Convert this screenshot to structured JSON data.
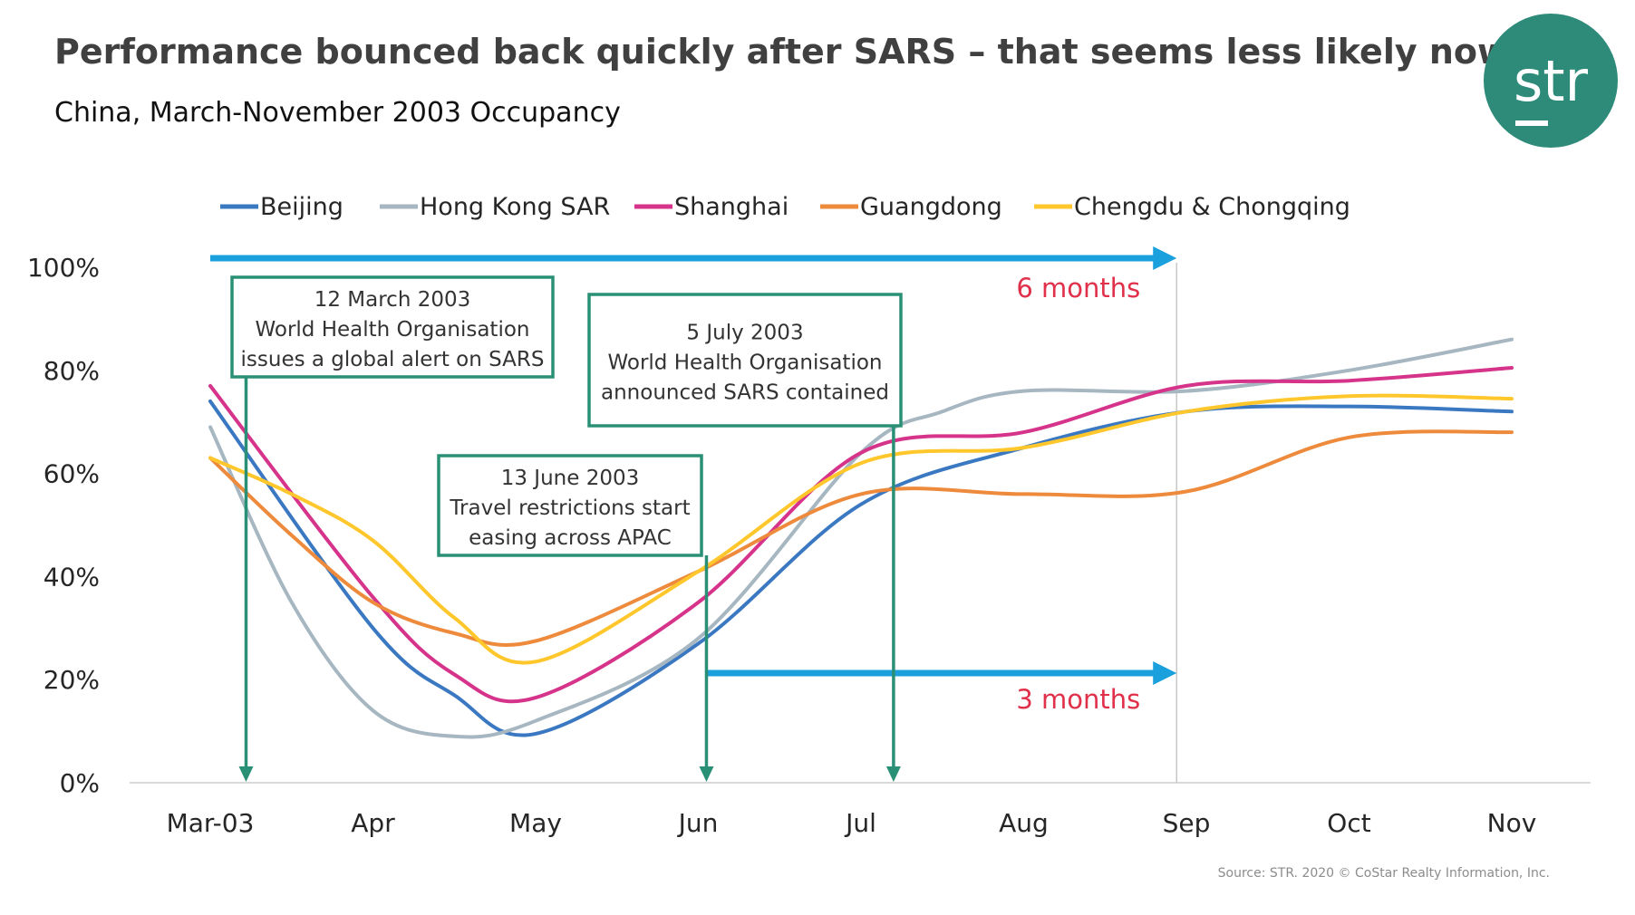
{
  "title": "Performance bounced back quickly after SARS – that seems less likely now",
  "subtitle": "China, March-November 2003 Occupancy",
  "logo": {
    "text": "str",
    "color": "#2e8b7a"
  },
  "source": "Source: STR. 2020 © CoStar Realty Information, Inc.",
  "chart_data": {
    "type": "line",
    "categories": [
      "Mar-03",
      "Apr",
      "May",
      "Jun",
      "Jul",
      "Aug",
      "Sep",
      "Oct",
      "Nov"
    ],
    "ylim": [
      0,
      100
    ],
    "yticks": [
      "0%",
      "20%",
      "40%",
      "60%",
      "80%",
      "100%"
    ],
    "grid": false,
    "legend": "top",
    "series": [
      {
        "name": "Beijing",
        "color": "#3a78c2",
        "points": [
          [
            0,
            74
          ],
          [
            1,
            30
          ],
          [
            1.5,
            17
          ],
          [
            2,
            9.5
          ],
          [
            3,
            27
          ],
          [
            4,
            54
          ],
          [
            5,
            65
          ],
          [
            6,
            72
          ],
          [
            7,
            73
          ],
          [
            8,
            72
          ]
        ]
      },
      {
        "name": "Hong Kong SAR",
        "color": "#a7b7c1",
        "points": [
          [
            0,
            69
          ],
          [
            0.5,
            35
          ],
          [
            1,
            14
          ],
          [
            1.5,
            9
          ],
          [
            2,
            12
          ],
          [
            3,
            28
          ],
          [
            4,
            64
          ],
          [
            4.5,
            72
          ],
          [
            5,
            76
          ],
          [
            6,
            76
          ],
          [
            7,
            80
          ],
          [
            8,
            86
          ]
        ]
      },
      {
        "name": "Shanghai",
        "color": "#d6338a",
        "points": [
          [
            0,
            77
          ],
          [
            1,
            36
          ],
          [
            1.5,
            21
          ],
          [
            2,
            16.5
          ],
          [
            3,
            35
          ],
          [
            4,
            64
          ],
          [
            5,
            68
          ],
          [
            6,
            77
          ],
          [
            7,
            78
          ],
          [
            8,
            80.5
          ]
        ]
      },
      {
        "name": "Guangdong",
        "color": "#ee8a3c",
        "points": [
          [
            0,
            63
          ],
          [
            0.5,
            48
          ],
          [
            1,
            35
          ],
          [
            1.5,
            29
          ],
          [
            2,
            27.5
          ],
          [
            3,
            41
          ],
          [
            4,
            56
          ],
          [
            5,
            56
          ],
          [
            6,
            56.5
          ],
          [
            7,
            67
          ],
          [
            8,
            68
          ]
        ]
      },
      {
        "name": "Chengdu & Chongqing",
        "color": "#ffc72c",
        "points": [
          [
            0,
            63
          ],
          [
            0.5,
            56
          ],
          [
            1,
            47
          ],
          [
            1.5,
            32
          ],
          [
            2,
            23.5
          ],
          [
            3,
            41
          ],
          [
            4,
            62
          ],
          [
            5,
            65
          ],
          [
            6,
            72
          ],
          [
            7,
            75
          ],
          [
            8,
            74.5
          ]
        ]
      }
    ],
    "annotations": [
      {
        "lines": [
          "12 March 2003",
          "World Health Organisation",
          "issues a global alert on SARS"
        ],
        "x": 0.22
      },
      {
        "lines": [
          "13 June 2003",
          "Travel restrictions start",
          "easing across APAC"
        ],
        "x": 3.05
      },
      {
        "lines": [
          "5 July 2003",
          "World Health Organisation",
          "announced SARS contained"
        ],
        "x": 4.2
      }
    ],
    "spans": [
      {
        "label": "6 months",
        "from": 0,
        "to": 5.94,
        "color": "#1aa0dc",
        "label_color": "#e0304a"
      },
      {
        "label": "3 months",
        "from": 3.05,
        "to": 5.94,
        "color": "#1aa0dc",
        "label_color": "#e0304a"
      }
    ],
    "reference_line_x": 5.94,
    "annotation_color": "#2a9075"
  }
}
